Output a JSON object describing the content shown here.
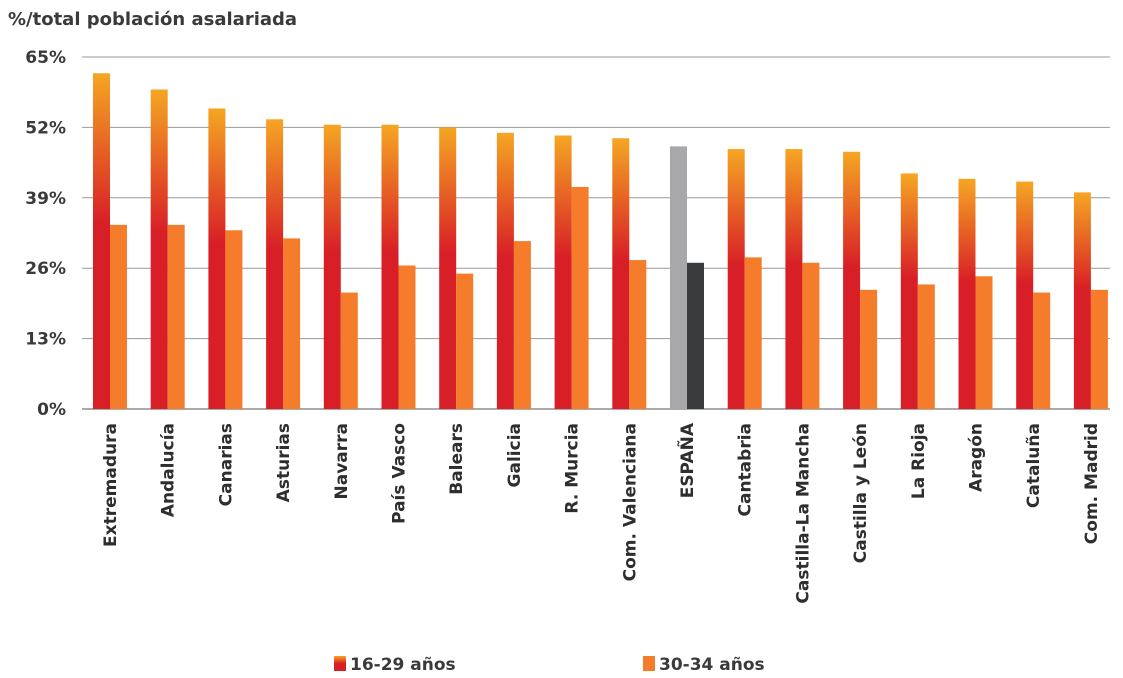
{
  "chart_data": {
    "type": "bar",
    "ylabel": "%/total población asalariada",
    "ylim": [
      0,
      65
    ],
    "yticks": [
      "0%",
      "13%",
      "26%",
      "39%",
      "52%",
      "65%"
    ],
    "ytick_values": [
      0,
      13,
      26,
      39,
      52,
      65
    ],
    "grid": true,
    "legend_position": "bottom",
    "categories": [
      "Extremadura",
      "Andalucía",
      "Canarias",
      "Asturias",
      "Navarra",
      "País Vasco",
      "Balears",
      "Galicia",
      "R. Murcia",
      "Com. Valenciana",
      "ESPAÑA",
      "Cantabria",
      "Castilla-La Mancha",
      "Castilla y León",
      "La Rioja",
      "Aragón",
      "Cataluña",
      "Com. Madrid"
    ],
    "highlight_category": "ESPAÑA",
    "series": [
      {
        "name": "16-29 años",
        "values": [
          62.0,
          59.0,
          55.5,
          53.5,
          52.5,
          52.5,
          52.0,
          51.0,
          50.5,
          50.0,
          48.5,
          48.0,
          48.0,
          47.5,
          43.5,
          42.5,
          42.0,
          40.0
        ]
      },
      {
        "name": "30-34 años",
        "values": [
          34.0,
          34.0,
          33.0,
          31.5,
          21.5,
          26.5,
          25.0,
          31.0,
          41.0,
          27.5,
          27.0,
          28.0,
          27.0,
          22.0,
          23.0,
          24.5,
          21.5,
          22.0
        ]
      }
    ],
    "colors": {
      "series1_top": "#f5a623",
      "series1_bottom": "#d81e26",
      "series2": "#f47c2a",
      "highlight1": "#a8a8aa",
      "highlight2": "#3a3b3d",
      "grid": "#999999",
      "axis": "#555555"
    }
  }
}
